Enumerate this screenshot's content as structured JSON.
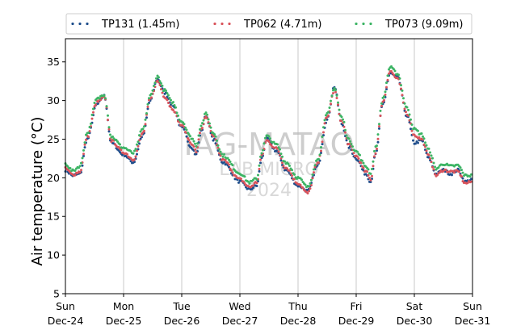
{
  "chart_data": {
    "type": "scatter",
    "ylabel": "Air temperature (°C)",
    "ylim": [
      5,
      38
    ],
    "yticks": [
      5,
      10,
      15,
      20,
      25,
      30,
      35
    ],
    "xlim": [
      "2023-12-24T00:00",
      "2023-12-31T00:00"
    ],
    "xticks": [
      {
        "date": "2023-12-24",
        "day": "Sun",
        "label": "Dec-24"
      },
      {
        "date": "2023-12-25",
        "day": "Mon",
        "label": "Dec-25"
      },
      {
        "date": "2023-12-26",
        "day": "Tue",
        "label": "Dec-26"
      },
      {
        "date": "2023-12-27",
        "day": "Wed",
        "label": "Dec-27"
      },
      {
        "date": "2023-12-28",
        "day": "Thu",
        "label": "Dec-28"
      },
      {
        "date": "2023-12-29",
        "day": "Fri",
        "label": "Dec-29"
      },
      {
        "date": "2023-12-30",
        "day": "Sat",
        "label": "Dec-30"
      },
      {
        "date": "2023-12-31",
        "day": "Sun",
        "label": "Dec-31"
      }
    ],
    "grid": "vertical",
    "legend_position": "top",
    "watermark": [
      "IAG-MATAO",
      "LAB MICRO",
      "2024"
    ],
    "series": [
      {
        "name": "TP131 (1.45m)",
        "color": "#1f4e8c",
        "points": [
          [
            "2023-12-24T00:00",
            21.0
          ],
          [
            "2023-12-24T03:00",
            20.3
          ],
          [
            "2023-12-24T06:00",
            20.5
          ],
          [
            "2023-12-24T09:00",
            25.0
          ],
          [
            "2023-12-24T13:00",
            29.5
          ],
          [
            "2023-12-24T16:00",
            30.6
          ],
          [
            "2023-12-24T19:00",
            24.5
          ],
          [
            "2023-12-25T00:00",
            23.0
          ],
          [
            "2023-12-25T04:00",
            22.0
          ],
          [
            "2023-12-25T08:00",
            25.5
          ],
          [
            "2023-12-25T11:00",
            30.0
          ],
          [
            "2023-12-25T14:00",
            32.8
          ],
          [
            "2023-12-25T17:00",
            31.0
          ],
          [
            "2023-12-25T20:00",
            29.5
          ],
          [
            "2023-12-26T00:00",
            26.5
          ],
          [
            "2023-12-26T04:00",
            24.0
          ],
          [
            "2023-12-26T06:00",
            23.0
          ],
          [
            "2023-12-26T08:00",
            26.0
          ],
          [
            "2023-12-26T10:00",
            28.0
          ],
          [
            "2023-12-26T13:00",
            25.0
          ],
          [
            "2023-12-26T17:00",
            22.0
          ],
          [
            "2023-12-27T00:00",
            19.5
          ],
          [
            "2023-12-27T04:00",
            18.5
          ],
          [
            "2023-12-27T07:00",
            19.0
          ],
          [
            "2023-12-27T09:00",
            22.5
          ],
          [
            "2023-12-27T11:00",
            25.0
          ],
          [
            "2023-12-27T15:00",
            23.5
          ],
          [
            "2023-12-27T19:00",
            21.0
          ],
          [
            "2023-12-28T00:00",
            19.0
          ],
          [
            "2023-12-28T04:00",
            18.3
          ],
          [
            "2023-12-28T08:00",
            21.5
          ],
          [
            "2023-12-28T12:00",
            27.5
          ],
          [
            "2023-12-28T15:00",
            31.8
          ],
          [
            "2023-12-28T18:00",
            27.0
          ],
          [
            "2023-12-28T21:00",
            24.0
          ],
          [
            "2023-12-29T00:00",
            22.5
          ],
          [
            "2023-12-29T04:00",
            20.5
          ],
          [
            "2023-12-29T06:00",
            19.5
          ],
          [
            "2023-12-29T08:00",
            23.0
          ],
          [
            "2023-12-29T11:00",
            29.5
          ],
          [
            "2023-12-29T14:00",
            33.5
          ],
          [
            "2023-12-29T17:00",
            33.0
          ],
          [
            "2023-12-29T21:00",
            28.0
          ],
          [
            "2023-12-30T00:00",
            24.5
          ],
          [
            "2023-12-30T03:00",
            24.8
          ],
          [
            "2023-12-30T06:00",
            22.5
          ],
          [
            "2023-12-30T09:00",
            20.5
          ],
          [
            "2023-12-30T12:00",
            21.0
          ],
          [
            "2023-12-30T15:00",
            20.5
          ],
          [
            "2023-12-30T18:00",
            21.0
          ],
          [
            "2023-12-30T21:00",
            19.5
          ],
          [
            "2023-12-31T00:00",
            19.8
          ]
        ]
      },
      {
        "name": "TP062 (4.71m)",
        "color": "#d9535b",
        "points": [
          [
            "2023-12-24T00:00",
            21.2
          ],
          [
            "2023-12-24T03:00",
            20.4
          ],
          [
            "2023-12-24T06:00",
            20.8
          ],
          [
            "2023-12-24T09:00",
            25.3
          ],
          [
            "2023-12-24T13:00",
            29.8
          ],
          [
            "2023-12-24T16:00",
            30.4
          ],
          [
            "2023-12-24T19:00",
            24.8
          ],
          [
            "2023-12-25T00:00",
            23.3
          ],
          [
            "2023-12-25T04:00",
            22.4
          ],
          [
            "2023-12-25T08:00",
            25.8
          ],
          [
            "2023-12-25T11:00",
            30.2
          ],
          [
            "2023-12-25T14:00",
            32.5
          ],
          [
            "2023-12-25T17:00",
            30.5
          ],
          [
            "2023-12-25T20:00",
            29.0
          ],
          [
            "2023-12-26T00:00",
            26.8
          ],
          [
            "2023-12-26T04:00",
            24.5
          ],
          [
            "2023-12-26T06:00",
            23.4
          ],
          [
            "2023-12-26T08:00",
            26.3
          ],
          [
            "2023-12-26T10:00",
            27.8
          ],
          [
            "2023-12-26T13:00",
            25.3
          ],
          [
            "2023-12-26T17:00",
            22.3
          ],
          [
            "2023-12-27T00:00",
            19.8
          ],
          [
            "2023-12-27T04:00",
            18.8
          ],
          [
            "2023-12-27T07:00",
            19.4
          ],
          [
            "2023-12-27T09:00",
            22.8
          ],
          [
            "2023-12-27T11:00",
            24.8
          ],
          [
            "2023-12-27T15:00",
            23.8
          ],
          [
            "2023-12-27T19:00",
            21.3
          ],
          [
            "2023-12-28T00:00",
            19.3
          ],
          [
            "2023-12-28T04:00",
            18.0
          ],
          [
            "2023-12-28T08:00",
            21.8
          ],
          [
            "2023-12-28T12:00",
            27.8
          ],
          [
            "2023-12-28T15:00",
            31.3
          ],
          [
            "2023-12-28T18:00",
            27.3
          ],
          [
            "2023-12-28T21:00",
            24.3
          ],
          [
            "2023-12-29T00:00",
            22.8
          ],
          [
            "2023-12-29T04:00",
            20.8
          ],
          [
            "2023-12-29T06:00",
            19.8
          ],
          [
            "2023-12-29T08:00",
            23.3
          ],
          [
            "2023-12-29T11:00",
            29.8
          ],
          [
            "2023-12-29T14:00",
            33.8
          ],
          [
            "2023-12-29T17:00",
            32.8
          ],
          [
            "2023-12-29T21:00",
            28.3
          ],
          [
            "2023-12-30T00:00",
            25.5
          ],
          [
            "2023-12-30T03:00",
            25.0
          ],
          [
            "2023-12-30T06:00",
            22.8
          ],
          [
            "2023-12-30T09:00",
            20.3
          ],
          [
            "2023-12-30T12:00",
            21.0
          ],
          [
            "2023-12-30T15:00",
            20.8
          ],
          [
            "2023-12-30T18:00",
            20.8
          ],
          [
            "2023-12-30T21:00",
            19.3
          ],
          [
            "2023-12-31T00:00",
            19.5
          ]
        ]
      },
      {
        "name": "TP073 (9.09m)",
        "color": "#3cb464",
        "points": [
          [
            "2023-12-24T00:00",
            21.8
          ],
          [
            "2023-12-24T03:00",
            20.9
          ],
          [
            "2023-12-24T06:00",
            21.5
          ],
          [
            "2023-12-24T09:00",
            25.8
          ],
          [
            "2023-12-24T13:00",
            30.2
          ],
          [
            "2023-12-24T16:00",
            30.8
          ],
          [
            "2023-12-24T19:00",
            25.3
          ],
          [
            "2023-12-25T00:00",
            23.9
          ],
          [
            "2023-12-25T04:00",
            23.2
          ],
          [
            "2023-12-25T08:00",
            26.3
          ],
          [
            "2023-12-25T11:00",
            30.6
          ],
          [
            "2023-12-25T14:00",
            33.1
          ],
          [
            "2023-12-25T17:00",
            31.3
          ],
          [
            "2023-12-25T20:00",
            29.8
          ],
          [
            "2023-12-26T00:00",
            27.3
          ],
          [
            "2023-12-26T04:00",
            25.2
          ],
          [
            "2023-12-26T06:00",
            24.2
          ],
          [
            "2023-12-26T08:00",
            26.8
          ],
          [
            "2023-12-26T10:00",
            28.3
          ],
          [
            "2023-12-26T13:00",
            25.8
          ],
          [
            "2023-12-26T17:00",
            22.9
          ],
          [
            "2023-12-27T00:00",
            20.6
          ],
          [
            "2023-12-27T04:00",
            19.4
          ],
          [
            "2023-12-27T07:00",
            19.9
          ],
          [
            "2023-12-27T09:00",
            23.3
          ],
          [
            "2023-12-27T11:00",
            25.4
          ],
          [
            "2023-12-27T15:00",
            24.3
          ],
          [
            "2023-12-27T19:00",
            22.0
          ],
          [
            "2023-12-28T00:00",
            20.0
          ],
          [
            "2023-12-28T04:00",
            18.8
          ],
          [
            "2023-12-28T08:00",
            22.3
          ],
          [
            "2023-12-28T12:00",
            28.2
          ],
          [
            "2023-12-28T15:00",
            31.6
          ],
          [
            "2023-12-28T18:00",
            27.8
          ],
          [
            "2023-12-28T21:00",
            24.9
          ],
          [
            "2023-12-29T00:00",
            23.4
          ],
          [
            "2023-12-29T04:00",
            21.5
          ],
          [
            "2023-12-29T06:00",
            20.6
          ],
          [
            "2023-12-29T08:00",
            23.9
          ],
          [
            "2023-12-29T11:00",
            30.2
          ],
          [
            "2023-12-29T14:00",
            34.3
          ],
          [
            "2023-12-29T17:00",
            33.5
          ],
          [
            "2023-12-29T21:00",
            29.0
          ],
          [
            "2023-12-30T00:00",
            26.3
          ],
          [
            "2023-12-30T03:00",
            25.6
          ],
          [
            "2023-12-30T06:00",
            23.6
          ],
          [
            "2023-12-30T09:00",
            21.2
          ],
          [
            "2023-12-30T12:00",
            21.8
          ],
          [
            "2023-12-30T15:00",
            21.5
          ],
          [
            "2023-12-30T18:00",
            21.6
          ],
          [
            "2023-12-30T21:00",
            20.3
          ],
          [
            "2023-12-31T00:00",
            20.3
          ]
        ]
      }
    ]
  }
}
